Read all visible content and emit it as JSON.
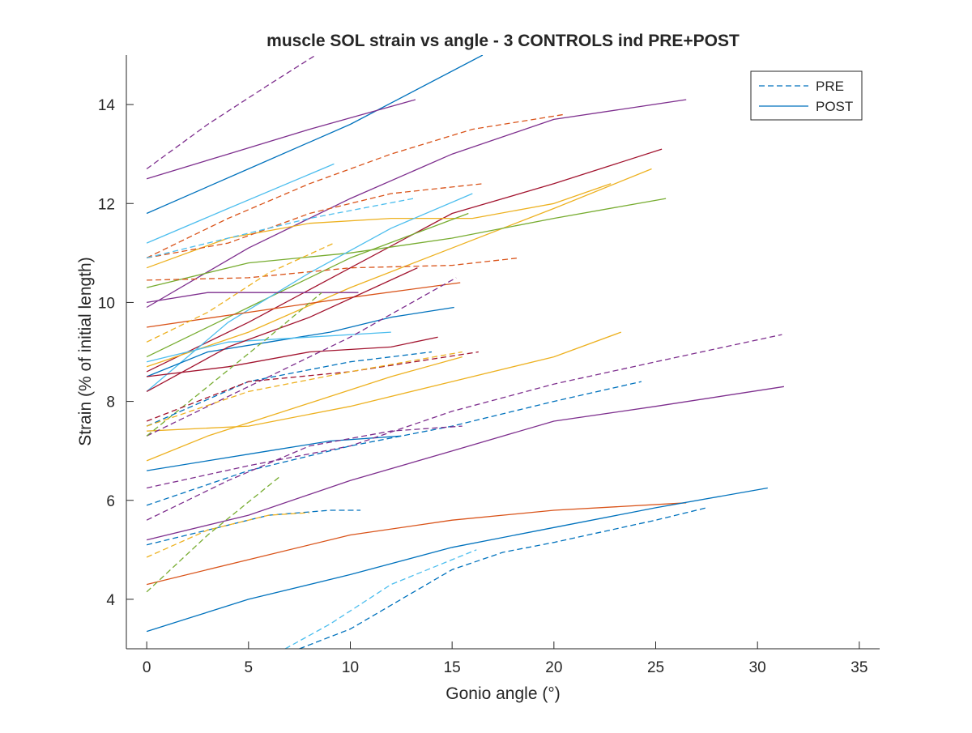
{
  "chart_data": {
    "type": "line",
    "title": "muscle SOL strain vs angle - 3 CONTROLS ind PRE+POST",
    "xlabel": "Gonio angle (°)",
    "ylabel": "Strain (% of initial length)",
    "xlim": [
      -1,
      36
    ],
    "ylim": [
      3,
      15
    ],
    "xticks": [
      "0",
      "5",
      "10",
      "15",
      "20",
      "25",
      "30",
      "35"
    ],
    "yticks": [
      "4",
      "6",
      "8",
      "10",
      "12",
      "14"
    ],
    "grid": false,
    "legend": {
      "placement": "top-right",
      "entries": [
        {
          "label": "PRE",
          "style": "dashed"
        },
        {
          "label": "POST",
          "style": "solid"
        }
      ]
    },
    "colors": {
      "blue": "#0072BD",
      "orange": "#D95319",
      "yellow": "#EDB120",
      "purple": "#7E2F8E",
      "green": "#77AC30",
      "cyan": "#4DBEEE",
      "red": "#A2142F"
    },
    "series": [
      {
        "group": "POST",
        "color": "blue",
        "x": [
          0,
          5,
          10,
          16.5
        ],
        "y": [
          11.8,
          12.7,
          13.6,
          15.0
        ]
      },
      {
        "group": "POST",
        "color": "purple",
        "x": [
          0,
          4,
          8,
          13.2
        ],
        "y": [
          12.5,
          13.0,
          13.5,
          14.1
        ]
      },
      {
        "group": "POST",
        "color": "cyan",
        "x": [
          0,
          4,
          9.2
        ],
        "y": [
          11.2,
          11.9,
          12.8
        ]
      },
      {
        "group": "POST",
        "color": "purple",
        "x": [
          0,
          5,
          10,
          15,
          20,
          26.5
        ],
        "y": [
          9.9,
          11.1,
          12.1,
          13.0,
          13.7,
          14.1
        ]
      },
      {
        "group": "POST",
        "color": "red",
        "x": [
          0,
          5,
          10,
          15,
          20,
          25.3
        ],
        "y": [
          8.6,
          9.6,
          10.7,
          11.8,
          12.4,
          13.1
        ]
      },
      {
        "group": "POST",
        "color": "yellow",
        "x": [
          0,
          5,
          10,
          15,
          20,
          24.8
        ],
        "y": [
          8.7,
          9.4,
          10.3,
          11.1,
          11.9,
          12.7
        ]
      },
      {
        "group": "POST",
        "color": "yellow",
        "x": [
          0,
          4,
          8,
          12,
          16,
          20,
          22.8
        ],
        "y": [
          10.7,
          11.3,
          11.6,
          11.7,
          11.7,
          12.0,
          12.4
        ]
      },
      {
        "group": "POST",
        "color": "green",
        "x": [
          0,
          5,
          10,
          15,
          20,
          25.5
        ],
        "y": [
          10.3,
          10.8,
          11.0,
          11.3,
          11.7,
          12.1
        ]
      },
      {
        "group": "POST",
        "color": "green",
        "x": [
          0,
          5,
          10,
          15.8
        ],
        "y": [
          8.9,
          9.9,
          10.9,
          11.8
        ]
      },
      {
        "group": "POST",
        "color": "cyan",
        "x": [
          0,
          4,
          8,
          12,
          16
        ],
        "y": [
          8.2,
          9.6,
          10.6,
          11.5,
          12.2
        ]
      },
      {
        "group": "POST",
        "color": "purple",
        "x": [
          0,
          3,
          6,
          10.4
        ],
        "y": [
          10.0,
          10.2,
          10.2,
          10.2
        ]
      },
      {
        "group": "POST",
        "color": "orange",
        "x": [
          0,
          5,
          10,
          15.4
        ],
        "y": [
          9.5,
          9.8,
          10.1,
          10.4
        ]
      },
      {
        "group": "POST",
        "color": "blue",
        "x": [
          0,
          3,
          6,
          9,
          12,
          15.1
        ],
        "y": [
          8.5,
          9.0,
          9.2,
          9.4,
          9.7,
          9.9
        ]
      },
      {
        "group": "POST",
        "color": "cyan",
        "x": [
          0,
          4,
          8,
          12
        ],
        "y": [
          8.8,
          9.2,
          9.3,
          9.4
        ]
      },
      {
        "group": "POST",
        "color": "red",
        "x": [
          0,
          4,
          8,
          12,
          14.3
        ],
        "y": [
          8.5,
          8.7,
          9.0,
          9.1,
          9.3
        ]
      },
      {
        "group": "POST",
        "color": "red",
        "x": [
          0,
          4,
          8,
          13.3
        ],
        "y": [
          8.2,
          9.1,
          9.7,
          10.7
        ]
      },
      {
        "group": "POST",
        "color": "yellow",
        "x": [
          0,
          5,
          10,
          15,
          20,
          23.3
        ],
        "y": [
          7.4,
          7.5,
          7.9,
          8.4,
          8.9,
          9.4
        ]
      },
      {
        "group": "POST",
        "color": "yellow",
        "x": [
          0,
          3,
          6,
          9,
          12,
          15.5
        ],
        "y": [
          6.8,
          7.3,
          7.7,
          8.1,
          8.5,
          8.9
        ]
      },
      {
        "group": "POST",
        "color": "blue",
        "x": [
          0,
          3,
          6,
          9,
          12.5
        ],
        "y": [
          6.6,
          6.8,
          7.0,
          7.2,
          7.3
        ]
      },
      {
        "group": "POST",
        "color": "purple",
        "x": [
          0,
          5,
          10,
          15,
          20,
          25,
          31.3
        ],
        "y": [
          5.2,
          5.7,
          6.4,
          7.0,
          7.6,
          7.9,
          8.3
        ]
      },
      {
        "group": "POST",
        "color": "orange",
        "x": [
          0,
          5,
          10,
          15,
          20,
          26.5
        ],
        "y": [
          4.3,
          4.8,
          5.3,
          5.6,
          5.8,
          5.95
        ]
      },
      {
        "group": "POST",
        "color": "blue",
        "x": [
          0,
          5,
          10,
          15,
          20,
          25,
          30.5
        ],
        "y": [
          3.35,
          4.0,
          4.5,
          5.05,
          5.45,
          5.85,
          6.25
        ]
      },
      {
        "group": "PRE",
        "color": "purple",
        "x": [
          0,
          3,
          6,
          8.3
        ],
        "y": [
          12.7,
          13.6,
          14.4,
          15.0
        ]
      },
      {
        "group": "PRE",
        "color": "orange",
        "x": [
          0,
          4,
          8,
          12,
          16,
          20.5
        ],
        "y": [
          10.9,
          11.7,
          12.4,
          13.0,
          13.5,
          13.8
        ]
      },
      {
        "group": "PRE",
        "color": "orange",
        "x": [
          0,
          4,
          8,
          12,
          16.5
        ],
        "y": [
          10.9,
          11.2,
          11.8,
          12.2,
          12.4
        ]
      },
      {
        "group": "PRE",
        "color": "cyan",
        "x": [
          0,
          4,
          8,
          13.1
        ],
        "y": [
          10.9,
          11.3,
          11.7,
          12.1
        ]
      },
      {
        "group": "PRE",
        "color": "orange",
        "x": [
          0,
          5,
          10,
          15,
          18.3
        ],
        "y": [
          10.45,
          10.5,
          10.7,
          10.75,
          10.9
        ]
      },
      {
        "group": "PRE",
        "color": "yellow",
        "x": [
          0,
          3,
          6,
          9.2
        ],
        "y": [
          9.2,
          9.8,
          10.6,
          11.2
        ]
      },
      {
        "group": "PRE",
        "color": "purple",
        "x": [
          0,
          5,
          10,
          15.2
        ],
        "y": [
          7.3,
          8.3,
          9.3,
          10.5
        ]
      },
      {
        "group": "PRE",
        "color": "green",
        "x": [
          0,
          3,
          6,
          8.6
        ],
        "y": [
          7.3,
          8.3,
          9.3,
          10.2
        ]
      },
      {
        "group": "PRE",
        "color": "blue",
        "x": [
          0,
          5,
          10,
          14
        ],
        "y": [
          7.5,
          8.4,
          8.8,
          9.0
        ]
      },
      {
        "group": "PRE",
        "color": "red",
        "x": [
          0,
          5,
          10,
          16.3
        ],
        "y": [
          7.6,
          8.4,
          8.6,
          9.0
        ]
      },
      {
        "group": "PRE",
        "color": "yellow",
        "x": [
          0,
          5,
          10,
          15.5
        ],
        "y": [
          7.5,
          8.2,
          8.6,
          9.0
        ]
      },
      {
        "group": "PRE",
        "color": "purple",
        "x": [
          0,
          5,
          10,
          15,
          20,
          25,
          31.2
        ],
        "y": [
          6.25,
          6.7,
          7.1,
          7.8,
          8.35,
          8.8,
          9.35
        ]
      },
      {
        "group": "PRE",
        "color": "blue",
        "x": [
          0,
          5,
          10,
          15,
          20,
          24.3
        ],
        "y": [
          5.9,
          6.6,
          7.1,
          7.5,
          8.0,
          8.4
        ]
      },
      {
        "group": "PRE",
        "color": "purple",
        "x": [
          0,
          4,
          8,
          12,
          15.5
        ],
        "y": [
          5.6,
          6.4,
          7.1,
          7.4,
          7.5
        ]
      },
      {
        "group": "PRE",
        "color": "blue",
        "x": [
          0,
          3,
          6,
          9,
          10.5
        ],
        "y": [
          5.1,
          5.4,
          5.7,
          5.8,
          5.8
        ]
      },
      {
        "group": "PRE",
        "color": "yellow",
        "x": [
          0,
          3,
          6,
          8
        ],
        "y": [
          4.85,
          5.4,
          5.7,
          5.75
        ]
      },
      {
        "group": "PRE",
        "color": "green",
        "x": [
          0,
          3,
          6.6
        ],
        "y": [
          4.15,
          5.3,
          6.5
        ]
      },
      {
        "group": "PRE",
        "color": "cyan",
        "x": [
          6.8,
          9,
          12,
          16.2
        ],
        "y": [
          3.0,
          3.5,
          4.3,
          5.0
        ]
      },
      {
        "group": "PRE",
        "color": "blue",
        "x": [
          7.5,
          10,
          12.5,
          15,
          17.5,
          20,
          25,
          27.5
        ],
        "y": [
          3.0,
          3.4,
          4.0,
          4.6,
          4.95,
          5.15,
          5.6,
          5.85
        ]
      }
    ]
  }
}
